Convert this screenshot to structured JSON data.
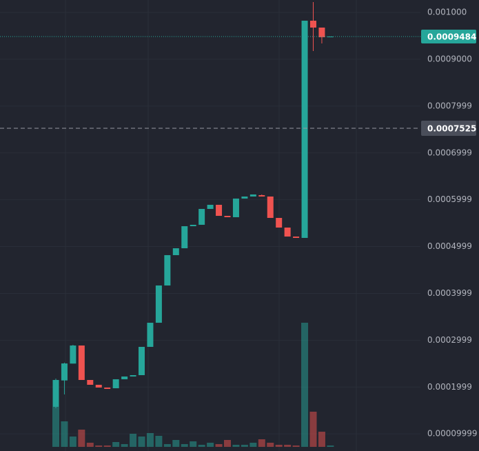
{
  "chart_data": {
    "type": "candlestick",
    "ylim": [
      6.33e-05,
      0.0010265
    ],
    "yticks": [
      {
        "value": 0.001,
        "label": "0.001000"
      },
      {
        "value": 0.0009,
        "label": "0.0009000"
      },
      0.0007999,
      0.0006999,
      0.0005999,
      0.0004999,
      0.0003999,
      0.0002999,
      0.0001999,
      9.999e-05
    ],
    "grid": true,
    "up_color": "#26a69a",
    "down_color": "#ef5350",
    "open": [
      0.0001576,
      0.000214,
      0.00025,
      0.0002886,
      0.000215,
      0.0002047,
      0.0001988,
      0.0001973,
      0.0002165,
      0.0002224,
      0.0002253,
      0.0002857,
      0.0003372,
      0.0004168,
      0.0004816,
      0.0004963,
      0.0005434,
      0.0005464,
      0.0005803,
      0.0005891,
      0.0005655,
      0.0005626,
      0.0006024,
      0.0006068,
      0.0006097,
      0.0006068,
      0.0005611,
      0.0005405,
      0.0005213,
      0.0005184,
      0.0009823,
      0.0009676,
      0.0009484
    ],
    "high": [
      0.000218,
      0.000252,
      0.00029,
      0.0002886,
      0.000215,
      0.0002047,
      0.0001988,
      0.0002165,
      0.0002224,
      0.0002253,
      0.0002857,
      0.0003372,
      0.0004168,
      0.0004816,
      0.0004963,
      0.0005434,
      0.0005464,
      0.0005803,
      0.0005891,
      0.0005891,
      0.0005655,
      0.0006024,
      0.0006068,
      0.0006112,
      0.0006112,
      0.0006068,
      0.0005611,
      0.0005405,
      0.0005213,
      0.0009823,
      0.001022,
      0.0009676,
      0.0009484
    ],
    "low": [
      0.0001546,
      0.0001841,
      0.00025,
      0.000215,
      0.0002047,
      0.0001988,
      0.0001959,
      0.0001973,
      0.0002165,
      0.0002224,
      0.0002253,
      0.0002857,
      0.0003372,
      0.0004168,
      0.0004816,
      0.0004963,
      0.0005434,
      0.0005464,
      0.0005803,
      0.0005655,
      0.0005626,
      0.0005626,
      0.0006024,
      0.0006068,
      0.0006068,
      0.0005611,
      0.0005405,
      0.0005213,
      0.0005184,
      0.0005184,
      0.0009175,
      0.0009337,
      0.0009484
    ],
    "close": [
      0.000215,
      0.0002503,
      0.0002886,
      0.000215,
      0.0002047,
      0.0001988,
      0.0001959,
      0.0002165,
      0.0002224,
      0.0002253,
      0.0002857,
      0.0003372,
      0.0004168,
      0.0004816,
      0.0004963,
      0.0005434,
      0.0005464,
      0.0005803,
      0.0005891,
      0.0005655,
      0.0005626,
      0.0006024,
      0.0006068,
      0.0006112,
      0.0006068,
      0.0005611,
      0.0005405,
      0.0005213,
      0.0005184,
      0.0009823,
      0.0009676,
      0.000947,
      0.0009484
    ],
    "volume": [
      58,
      37,
      15,
      25,
      6,
      2,
      2,
      7,
      4,
      19,
      15,
      20,
      16,
      4,
      10,
      4,
      8,
      3,
      6,
      4,
      10,
      3,
      3,
      6,
      11,
      6,
      3,
      3,
      2,
      180,
      51,
      22,
      2
    ],
    "last_price": 0.0009484,
    "crosshair_price": 0.0007525
  }
}
